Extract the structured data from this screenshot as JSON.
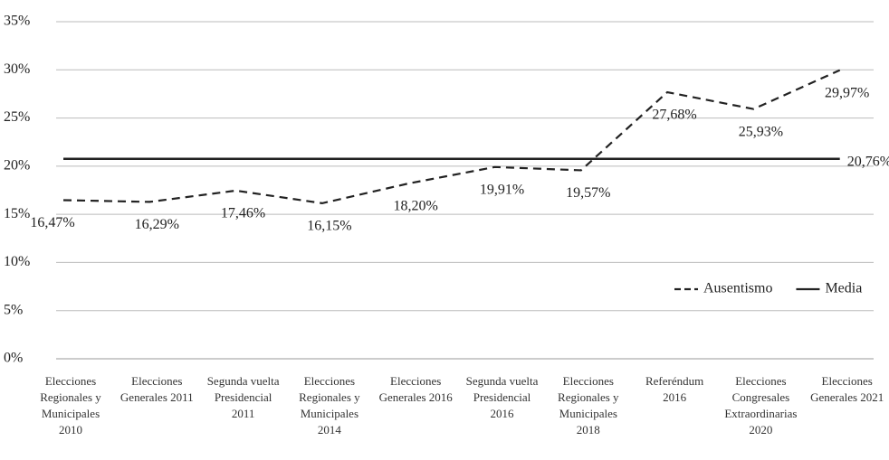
{
  "chart_data": {
    "type": "line",
    "categories": [
      "Elecciones Regionales y Municipales 2010",
      "Elecciones Generales 2011",
      "Segunda vuelta Presidencial 2011",
      "Elecciones Regionales y Municipales 2014",
      "Elecciones Generales 2016",
      "Segunda vuelta Presidencial 2016",
      "Elecciones Regionales y Municipales 2018",
      "Referéndum 2016",
      "Elecciones Congresales Extraordinarias 2020",
      "Elecciones Generales 2021"
    ],
    "series": [
      {
        "name": "Ausentismo",
        "color": "#222222",
        "dash": true,
        "values": [
          16.47,
          16.29,
          17.46,
          16.15,
          18.2,
          19.91,
          19.57,
          27.68,
          25.93,
          29.97
        ],
        "value_labels": [
          "16,47%",
          "16,29%",
          "17,46%",
          "16,15%",
          "18,20%",
          "19,91%",
          "19,57%",
          "27,68%",
          "25,93%",
          "29,97%"
        ]
      },
      {
        "name": "Media",
        "color": "#222222",
        "dash": false,
        "values": [
          20.76,
          20.76,
          20.76,
          20.76,
          20.76,
          20.76,
          20.76,
          20.76,
          20.76,
          20.76
        ],
        "value_labels": [
          null,
          null,
          null,
          null,
          null,
          null,
          null,
          null,
          null,
          "20,76%"
        ]
      }
    ],
    "ylim": [
      0,
      35
    ],
    "yticks": [
      {
        "value": 0,
        "label": "0%"
      },
      {
        "value": 5,
        "label": "5%"
      },
      {
        "value": 10,
        "label": "10%"
      },
      {
        "value": 15,
        "label": "15%"
      },
      {
        "value": 20,
        "label": "20%"
      },
      {
        "value": 25,
        "label": "25%"
      },
      {
        "value": 30,
        "label": "30%"
      },
      {
        "value": 35,
        "label": "35%"
      }
    ],
    "grid": true,
    "legend": "right"
  }
}
